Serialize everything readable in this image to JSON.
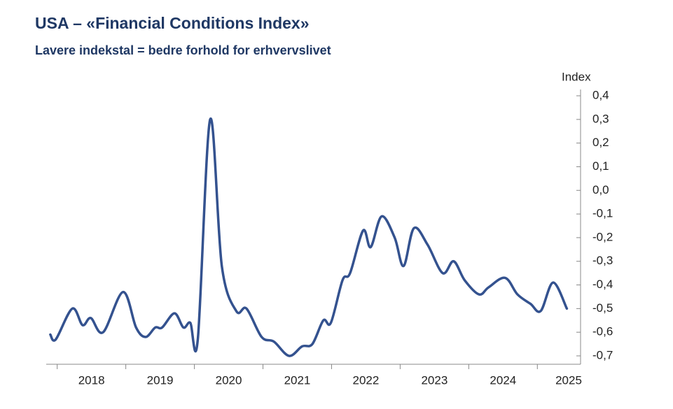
{
  "chart_data": {
    "type": "line",
    "title": "USA – «Financial Conditions Index»",
    "subtitle": "Lavere indekstal = bedre forhold for erhvervslivet",
    "y_axis_label": "Index",
    "categories": [
      "2018",
      "2019",
      "2020",
      "2021",
      "2022",
      "2023",
      "2024",
      "2025"
    ],
    "xlim": [
      2017.84,
      2025.63
    ],
    "xticks": [
      2018,
      2019,
      2020,
      2021,
      2022,
      2023,
      2024,
      2025
    ],
    "ylim": [
      -0.7,
      0.4
    ],
    "yticks": [
      {
        "value": -0.7,
        "label": "-0,7"
      },
      {
        "value": -0.6,
        "label": "-0,6"
      },
      {
        "value": -0.5,
        "label": "-0,5"
      },
      {
        "value": -0.4,
        "label": "-0,4"
      },
      {
        "value": -0.3,
        "label": "-0,3"
      },
      {
        "value": -0.2,
        "label": "-0,2"
      },
      {
        "value": -0.1,
        "label": "-0,1"
      },
      {
        "value": 0,
        "label": "0,0"
      },
      {
        "value": 0.1,
        "label": "0,1"
      },
      {
        "value": 0.2,
        "label": "0,2"
      },
      {
        "value": 0.3,
        "label": "0,3"
      },
      {
        "value": 0.4,
        "label": "0,4"
      }
    ],
    "x": [
      2017.9,
      2017.98,
      2018.22,
      2018.37,
      2018.49,
      2018.67,
      2018.96,
      2019.15,
      2019.29,
      2019.43,
      2019.53,
      2019.71,
      2019.84,
      2019.94,
      2020.05,
      2020.23,
      2020.4,
      2020.61,
      2020.76,
      2020.98,
      2021.16,
      2021.38,
      2021.57,
      2021.72,
      2021.88,
      2021.99,
      2022.16,
      2022.27,
      2022.46,
      2022.57,
      2022.73,
      2022.92,
      2023.05,
      2023.2,
      2023.4,
      2023.62,
      2023.78,
      2023.94,
      2024.15,
      2024.29,
      2024.53,
      2024.71,
      2024.9,
      2025.05,
      2025.23,
      2025.43
    ],
    "series": [
      {
        "color": "#34528f",
        "values": [
          -0.61,
          -0.63,
          -0.5,
          -0.57,
          -0.54,
          -0.6,
          -0.43,
          -0.58,
          -0.62,
          -0.58,
          -0.58,
          -0.52,
          -0.58,
          -0.56,
          -0.63,
          0.3,
          -0.32,
          -0.51,
          -0.5,
          -0.62,
          -0.64,
          -0.7,
          -0.66,
          -0.65,
          -0.55,
          -0.56,
          -0.38,
          -0.35,
          -0.17,
          -0.24,
          -0.11,
          -0.2,
          -0.32,
          -0.16,
          -0.23,
          -0.35,
          -0.3,
          -0.38,
          -0.44,
          -0.41,
          -0.37,
          -0.44,
          -0.48,
          -0.51,
          -0.39,
          -0.5
        ]
      }
    ]
  }
}
